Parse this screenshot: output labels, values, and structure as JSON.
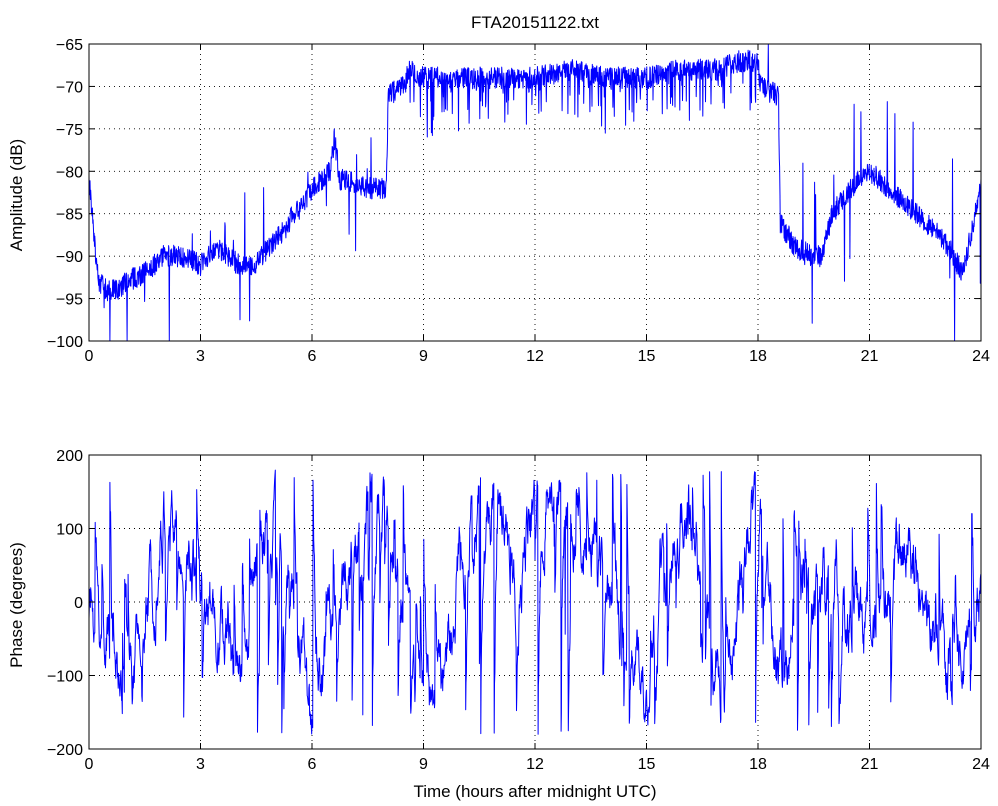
{
  "figure": {
    "title": "FTA20151122.txt"
  },
  "chart_data": [
    {
      "type": "line",
      "id": "amplitude",
      "title": "FTA20151122.txt",
      "xlabel": "",
      "ylabel": "Amplitude (dB)",
      "xlim": [
        0,
        24
      ],
      "ylim": [
        -100,
        -65
      ],
      "xticks": [
        0,
        3,
        6,
        9,
        12,
        15,
        18,
        21,
        24
      ],
      "yticks": [
        -100,
        -95,
        -90,
        -85,
        -80,
        -75,
        -70,
        -65
      ],
      "grid": true,
      "color": "#0000ff",
      "series": [
        {
          "x": [
            0,
            0.25,
            0.5,
            0.75,
            1.0,
            1.5,
            2.0,
            2.5,
            3.0,
            3.5,
            4.0,
            4.5,
            5.0,
            5.25,
            5.5,
            5.75,
            6.0,
            6.25,
            6.5,
            6.6,
            6.75,
            7.0,
            7.5,
            8.0,
            8.05,
            8.5,
            8.6,
            9.0,
            10.0,
            11.0,
            12.0,
            13.0,
            14.0,
            15.0,
            16.0,
            17.0,
            17.5,
            18.0,
            18.05,
            18.5,
            18.55,
            18.6,
            19.0,
            19.5,
            19.7,
            20.0,
            20.5,
            21.0,
            21.5,
            22.0,
            22.5,
            23.0,
            23.5,
            24.0
          ],
          "y": [
            -81,
            -93,
            -94,
            -94,
            -93,
            -92,
            -90,
            -90,
            -91,
            -89,
            -91,
            -91,
            -88,
            -87,
            -85,
            -84,
            -82,
            -81,
            -80,
            -76,
            -81,
            -81,
            -82,
            -82,
            -71,
            -70,
            -68,
            -69,
            -69,
            -69,
            -69,
            -68,
            -69,
            -69,
            -68,
            -68,
            -67,
            -67,
            -70,
            -71,
            -71,
            -86,
            -89,
            -90,
            -90,
            -85,
            -82,
            -80,
            -82,
            -84,
            -86,
            -88,
            -92,
            -82
          ]
        }
      ],
      "annotations": {
        "band_high_mean_db": -69,
        "band_high_start_h": 8.05,
        "band_high_end_h": 18.55,
        "spike_dips_to_db": -75,
        "peak_max_db": -65
      }
    },
    {
      "type": "line",
      "id": "phase",
      "title": "",
      "xlabel": "Time (hours after midnight UTC)",
      "ylabel": "Phase (degrees)",
      "xlim": [
        0,
        24
      ],
      "ylim": [
        -200,
        200
      ],
      "xticks": [
        0,
        3,
        6,
        9,
        12,
        15,
        18,
        21,
        24
      ],
      "yticks": [
        -200,
        -100,
        0,
        100,
        200
      ],
      "grid": true,
      "color": "#0000ff",
      "series": [
        {
          "x": [
            0,
            1,
            2,
            3,
            4,
            5,
            6,
            7,
            8,
            8.5,
            9,
            9.5,
            10,
            10.5,
            11,
            11.5,
            12,
            12.5,
            13,
            13.5,
            14,
            14.5,
            15,
            15.5,
            16,
            17,
            18,
            18.5,
            19,
            20,
            21,
            22,
            23,
            24
          ],
          "y": [
            0,
            -150,
            120,
            40,
            -100,
            150,
            -150,
            80,
            150,
            -40,
            -150,
            -110,
            90,
            150,
            140,
            0,
            160,
            150,
            100,
            60,
            20,
            -50,
            -150,
            60,
            120,
            -160,
            170,
            -100,
            0,
            20,
            -60,
            100,
            -120,
            40
          ],
          "wrap": true
        }
      ]
    }
  ]
}
